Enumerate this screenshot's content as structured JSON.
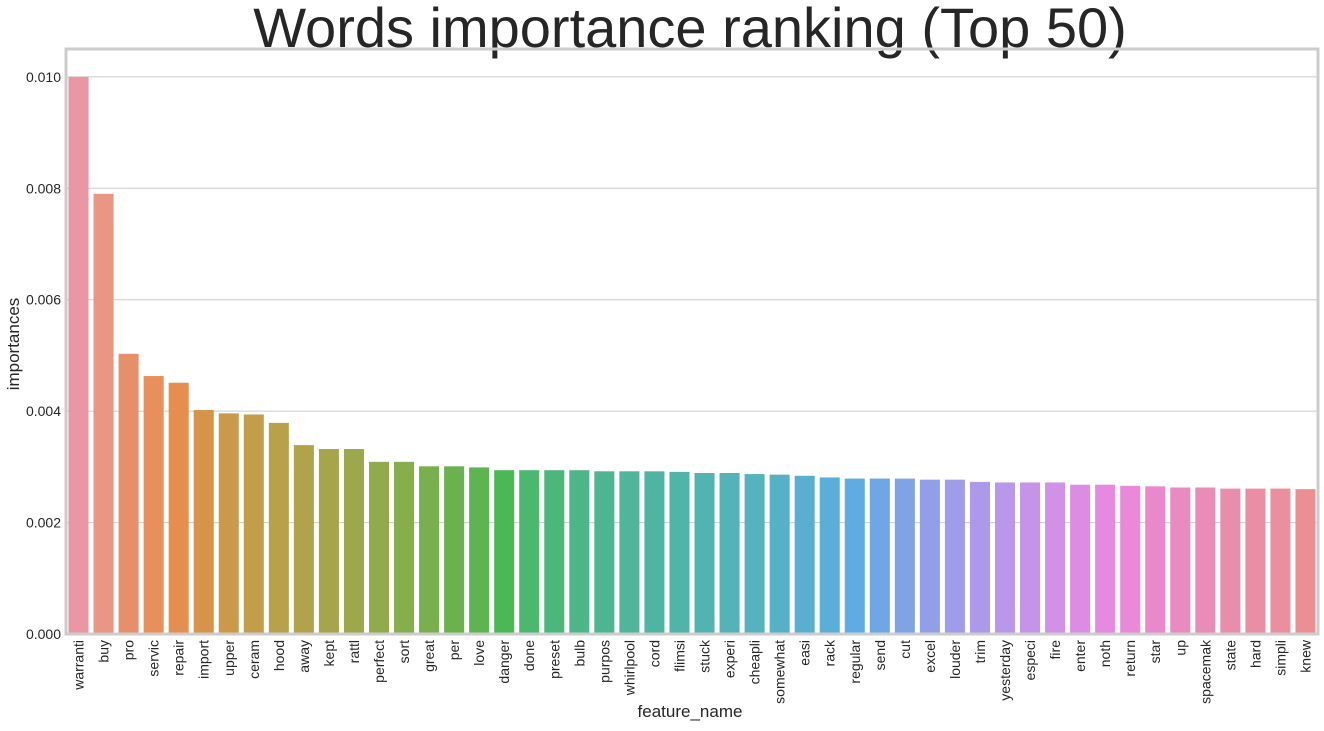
{
  "chart_data": {
    "type": "bar",
    "title": "Words importance ranking (Top 50)",
    "xlabel": "feature_name",
    "ylabel": "importances",
    "ylim": [
      0,
      0.0105
    ],
    "yticks": [
      "0.000",
      "0.002",
      "0.004",
      "0.006",
      "0.008",
      "0.010"
    ],
    "grid": true,
    "categories": [
      "warranti",
      "buy",
      "pro",
      "servic",
      "repair",
      "import",
      "upper",
      "ceram",
      "hood",
      "away",
      "kept",
      "rattl",
      "perfect",
      "sort",
      "great",
      "per",
      "love",
      "danger",
      "done",
      "preset",
      "bulb",
      "purpos",
      "whirlpool",
      "cord",
      "flimsi",
      "stuck",
      "experi",
      "cheapli",
      "somewhat",
      "easi",
      "rack",
      "regular",
      "send",
      "cut",
      "excel",
      "louder",
      "trim",
      "yesterday",
      "especi",
      "fire",
      "enter",
      "noth",
      "return",
      "star",
      "up",
      "spacemak",
      "state",
      "hard",
      "simpli",
      "knew"
    ],
    "values": [
      0.01,
      0.0079,
      0.00503,
      0.00463,
      0.00451,
      0.00402,
      0.00396,
      0.00394,
      0.00379,
      0.00339,
      0.00332,
      0.00332,
      0.00309,
      0.00309,
      0.00301,
      0.00301,
      0.00299,
      0.00294,
      0.00294,
      0.00294,
      0.00294,
      0.00292,
      0.00292,
      0.00292,
      0.00291,
      0.00289,
      0.00289,
      0.00287,
      0.00286,
      0.00284,
      0.00281,
      0.00279,
      0.00279,
      0.00279,
      0.00277,
      0.00277,
      0.00273,
      0.00272,
      0.00272,
      0.00272,
      0.00268,
      0.00268,
      0.00266,
      0.00265,
      0.00263,
      0.00263,
      0.00261,
      0.00261,
      0.00261,
      0.0026
    ],
    "colors": [
      "#ea96a3",
      "#e99685",
      "#e6906b",
      "#e7905c",
      "#e68d50",
      "#d5944a",
      "#cb9a49",
      "#c29d4a",
      "#b9a04a",
      "#b0a34b",
      "#a6a54b",
      "#9ca84c",
      "#91ab4c",
      "#85ae4c",
      "#78b04e",
      "#6bb24f",
      "#5db551",
      "#4cb757",
      "#4bb76f",
      "#4cb77d",
      "#4db689",
      "#4eb592",
      "#4fb59b",
      "#50b4a2",
      "#51b4a9",
      "#52b4b0",
      "#53b3b7",
      "#54b3be",
      "#56b1c6",
      "#58b0ce",
      "#5baed8",
      "#60abe1",
      "#6ea7e4",
      "#80a3e6",
      "#909fe8",
      "#9f9ce9",
      "#ad99e9",
      "#b997e9",
      "#c594e8",
      "#d191e6",
      "#dc8de3",
      "#e58ae0",
      "#e989d7",
      "#e989cc",
      "#e98bc1",
      "#e98cb7",
      "#e98dad",
      "#e98ea5",
      "#e98f9d",
      "#ea9095"
    ]
  }
}
